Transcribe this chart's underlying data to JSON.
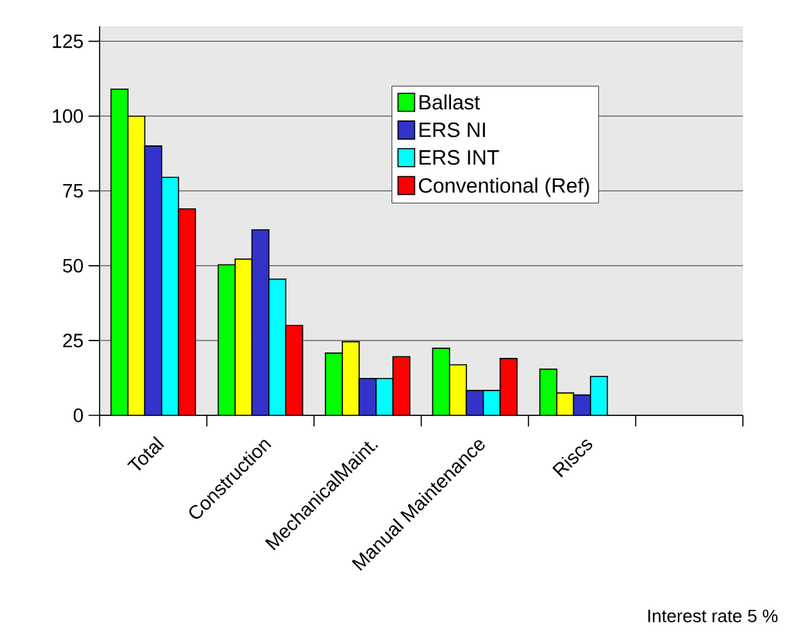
{
  "chart_data": {
    "type": "bar",
    "categories": [
      "Total",
      "Construction",
      "MechanicalMaint.",
      "Manual Maintenance",
      "Riscs",
      null
    ],
    "series": [
      {
        "name": "Ballast",
        "color": "#00ff00",
        "values": [
          109,
          50.3,
          20.8,
          22.4,
          15.4,
          null
        ]
      },
      {
        "color": "#ffff00",
        "values": [
          100,
          52.2,
          24.6,
          16.9,
          7.5,
          null
        ]
      },
      {
        "name": "ERS NI",
        "color": "#3333cc",
        "values": [
          90,
          62,
          12.3,
          8.3,
          6.8,
          null
        ]
      },
      {
        "name": "ERS INT",
        "color": "#00ffff",
        "values": [
          79.5,
          45.5,
          12.3,
          8.3,
          13,
          null
        ]
      },
      {
        "name": "Conventional (Ref)",
        "color": "#ff0000",
        "values": [
          69,
          30,
          19.6,
          19,
          null,
          null
        ]
      }
    ],
    "ylim": [
      0,
      130
    ],
    "yticks": [
      0,
      25,
      50,
      75,
      100,
      125
    ],
    "grid": "y",
    "legend": "top right",
    "annotations": [
      "Interest rate 5 %"
    ]
  }
}
